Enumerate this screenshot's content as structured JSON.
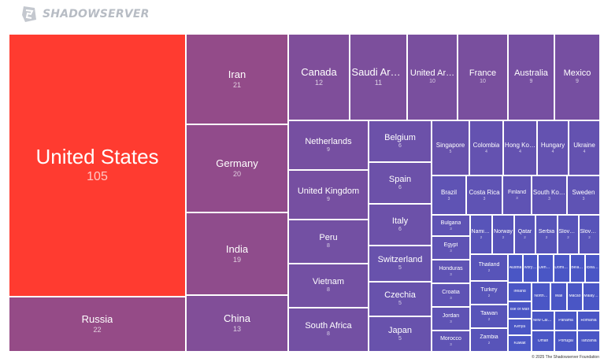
{
  "header": {
    "logo_text": "SHADOWSERVER"
  },
  "footer": {
    "copyright": "© 2025 The Shadowserver Foundation"
  },
  "chart_data": {
    "type": "treemap",
    "value_precision_note": "Values estimated from tile labels; small tiles unlabeled in image are estimated as 1-5.",
    "color_scale": {
      "min_color": "#4a56c5",
      "max_color": "#ff3b30",
      "min_value": 1,
      "max_value": 105
    },
    "items": [
      {
        "name": "United States",
        "value": 105
      },
      {
        "name": "Russia",
        "value": 22
      },
      {
        "name": "Iran",
        "value": 21
      },
      {
        "name": "Germany",
        "value": 20
      },
      {
        "name": "India",
        "value": 19
      },
      {
        "name": "China",
        "value": 13
      },
      {
        "name": "Canada",
        "value": 12
      },
      {
        "name": "Saudi Arabia",
        "value": 11
      },
      {
        "name": "United Ar…",
        "value": 10
      },
      {
        "name": "France",
        "value": 10
      },
      {
        "name": "Australia",
        "value": 9
      },
      {
        "name": "Mexico",
        "value": 9
      },
      {
        "name": "Netherlands",
        "value": 9
      },
      {
        "name": "United Kingdom",
        "value": 9
      },
      {
        "name": "Peru",
        "value": 8
      },
      {
        "name": "Vietnam",
        "value": 8
      },
      {
        "name": "South Africa",
        "value": 8
      },
      {
        "name": "Belgium",
        "value": 6
      },
      {
        "name": "Spain",
        "value": 6
      },
      {
        "name": "Italy",
        "value": 6
      },
      {
        "name": "Switzerland",
        "value": 5
      },
      {
        "name": "Czechia",
        "value": 5
      },
      {
        "name": "Japan",
        "value": 5
      },
      {
        "name": "Singapore",
        "value": 5
      },
      {
        "name": "Colombia",
        "value": 4
      },
      {
        "name": "Hong Kong",
        "value": 4
      },
      {
        "name": "Hungary",
        "value": 4
      },
      {
        "name": "Ukraine",
        "value": 4
      },
      {
        "name": "Brazil",
        "value": 3
      },
      {
        "name": "Costa Rica",
        "value": 3
      },
      {
        "name": "Finland",
        "value": 3
      },
      {
        "name": "South Korea",
        "value": 3
      },
      {
        "name": "Sweden",
        "value": 3
      },
      {
        "name": "Bulgaria",
        "value": 3
      },
      {
        "name": "Egypt",
        "value": 3
      },
      {
        "name": "Honduras",
        "value": 3
      },
      {
        "name": "Croatia",
        "value": 3
      },
      {
        "name": "Jordan",
        "value": 3
      },
      {
        "name": "Morocco",
        "value": 3
      },
      {
        "name": "Namibia",
        "value": 2
      },
      {
        "name": "Norway",
        "value": 2
      },
      {
        "name": "Qatar",
        "value": 2
      },
      {
        "name": "Serbia",
        "value": 2
      },
      {
        "name": "Slovenia",
        "value": 2
      },
      {
        "name": "Slovakia",
        "value": 2
      },
      {
        "name": "Thailand",
        "value": 2
      },
      {
        "name": "Turkey",
        "value": 2
      },
      {
        "name": "Taiwan",
        "value": 2
      },
      {
        "name": "Zambia",
        "value": 2
      },
      {
        "name": "Austria",
        "value": 1
      },
      {
        "name": "Ivory…",
        "value": 1
      },
      {
        "name": "Denm…",
        "value": 1
      },
      {
        "name": "Domini…",
        "value": 1
      },
      {
        "name": "Belarus",
        "value": 1
      },
      {
        "name": "Icelan…",
        "value": 1
      },
      {
        "name": "Ireland",
        "value": 1
      },
      {
        "name": "North…",
        "value": 1
      },
      {
        "name": "Mali",
        "value": 1
      },
      {
        "name": "Macao",
        "value": 1
      },
      {
        "name": "Malaysia",
        "value": 1
      },
      {
        "name": "Isle of Man",
        "value": 1
      },
      {
        "name": "Kenya",
        "value": 1
      },
      {
        "name": "New Caled…",
        "value": 1
      },
      {
        "name": "Panama",
        "value": 1
      },
      {
        "name": "Romania",
        "value": 1
      },
      {
        "name": "Kuwait",
        "value": 1
      },
      {
        "name": "Oman",
        "value": 1
      },
      {
        "name": "Portugal",
        "value": 1
      },
      {
        "name": "Tanzania",
        "value": 1
      }
    ]
  }
}
